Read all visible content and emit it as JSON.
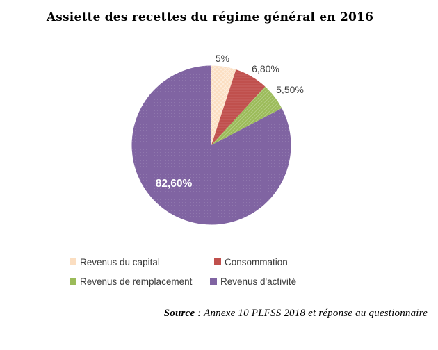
{
  "title": "Assiette des recettes du régime général en 2016",
  "chart_data": {
    "type": "pie",
    "title": "Assiette des recettes du régime général en 2016",
    "start_angle_deg": 0,
    "direction": "clockwise",
    "legend_position": "bottom",
    "slices": [
      {
        "name": "Revenus du capital",
        "value": 5.0,
        "label": "5%",
        "color": "#FBDEC1",
        "texture": "diamond"
      },
      {
        "name": "Consommation",
        "value": 6.8,
        "label": "6,80%",
        "color": "#C0504D",
        "texture": "horizontal"
      },
      {
        "name": "Revenus de remplacement",
        "value": 5.5,
        "label": "5,50%",
        "color": "#9BBB59",
        "texture": "diagonal"
      },
      {
        "name": "Revenus d'activité",
        "value": 82.6,
        "label": "82,60%",
        "color": "#8064A2",
        "texture": "dots"
      }
    ],
    "data_label_color_outside": "#3F3F3F",
    "data_label_color_inside": "#FFFFFF"
  },
  "source": {
    "label": "Source",
    "rest": " : Annexe 10 PLFSS 2018 et réponse au questionnaire"
  }
}
